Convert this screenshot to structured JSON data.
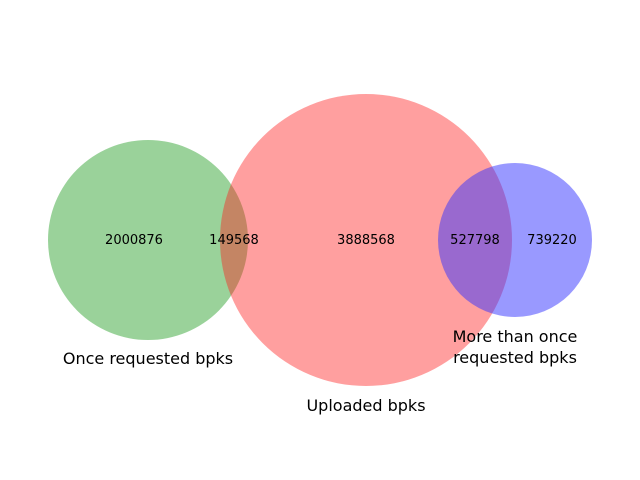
{
  "colors": {
    "set_green": "#2ca02c",
    "set_red": "#ff1a1a",
    "set_blue": "#3333ff",
    "background": "#ffffff"
  },
  "sets": {
    "once": {
      "label": "Once requested bpks"
    },
    "uploaded": {
      "label": "Uploaded bpks"
    },
    "more": {
      "label_line1": "More than once",
      "label_line2": "requested bpks"
    }
  },
  "regions": {
    "once_only": "2000876",
    "once_and_uploaded": "149568",
    "uploaded_only": "3888568",
    "uploaded_and_more": "527798",
    "more_only": "739220"
  }
}
